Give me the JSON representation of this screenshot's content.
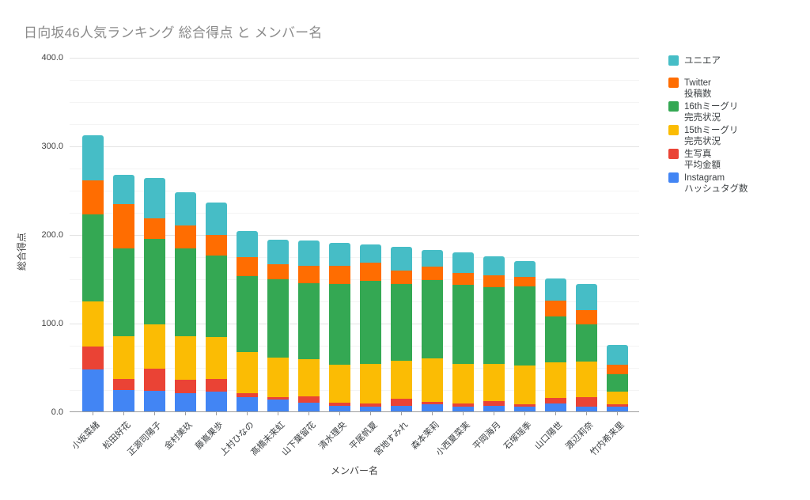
{
  "title": {
    "text": "日向坂46人気ランキング 総合得点 と メンバー名",
    "color": "#8b8b8b"
  },
  "axes": {
    "y_title": "総合得点",
    "x_title": "メンバー名"
  },
  "colors": {
    "uniair_teal": "#46BDC6",
    "twitter_orange": "#FF6D01",
    "miigli16_green": "#34A853",
    "miigli15_yellow": "#FBBC04",
    "photo_red": "#EA4335",
    "instagram_blue": "#4285F4",
    "grid_major": "#e3e3e3",
    "grid_minor": "#f4f4f4",
    "axis_line": "#9e9e9e"
  },
  "chart_data": {
    "type": "bar",
    "stacked": true,
    "orientation": "vertical",
    "title": "日向坂46人気ランキング 総合得点 と メンバー名",
    "xlabel": "メンバー名",
    "ylabel": "総合得点",
    "ylim": [
      0,
      400
    ],
    "ytick_values": [
      0,
      100,
      200,
      300,
      400
    ],
    "ytick_labels": [
      "0.0",
      "100.0",
      "200.0",
      "300.0",
      "400.0"
    ],
    "minor_gridline_step": 25,
    "grid": true,
    "legend_position": "right",
    "categories": [
      "小坂菜緒",
      "松田好花",
      "正源司陽子",
      "金村美玖",
      "藤嶌果歩",
      "上村ひなの",
      "髙橋未来虹",
      "山下葉留花",
      "清水理央",
      "平尾帆夏",
      "宮地すみれ",
      "森本茉莉",
      "小西夏菜実",
      "平岡海月",
      "石塚瑶季",
      "山口陽世",
      "渡辺莉奈",
      "竹内希来里"
    ],
    "series": [
      {
        "name": "Instagram ハッシュタグ数",
        "color": "#4285F4",
        "values": [
          47,
          24,
          23,
          21,
          22,
          16,
          13,
          10,
          6,
          5,
          6,
          8,
          5,
          6,
          5,
          9,
          5,
          5
        ]
      },
      {
        "name": "生写真 平均金額",
        "color": "#EA4335",
        "values": [
          26,
          13,
          25,
          15,
          15,
          5,
          3,
          7,
          4,
          4,
          8,
          3,
          4,
          6,
          3,
          6,
          11,
          3
        ]
      },
      {
        "name": "15thミーグリ 完売状況",
        "color": "#FBBC04",
        "values": [
          51,
          48,
          50,
          49,
          47,
          46,
          45,
          42,
          43,
          45,
          43,
          49,
          45,
          42,
          44,
          40,
          40,
          14
        ]
      },
      {
        "name": "16thミーグリ 完売状況",
        "color": "#34A853",
        "values": [
          98,
          99,
          97,
          99,
          92,
          86,
          88,
          86,
          91,
          93,
          87,
          88,
          89,
          86,
          89,
          52,
          42,
          20
        ]
      },
      {
        "name": "Twitter 投稿数",
        "color": "#FF6D01",
        "values": [
          39,
          50,
          23,
          26,
          23,
          21,
          17,
          19,
          20,
          21,
          15,
          15,
          13,
          14,
          11,
          18,
          16,
          11
        ]
      },
      {
        "name": "ユニエア",
        "color": "#46BDC6",
        "values": [
          51,
          33,
          45,
          37,
          37,
          30,
          28,
          29,
          26,
          20,
          27,
          19,
          23,
          21,
          18,
          25,
          30,
          22
        ]
      }
    ],
    "totals": [
      312,
      267,
      263,
      247,
      236,
      204,
      194,
      193,
      190,
      188,
      186,
      182,
      179,
      175,
      170,
      150,
      144,
      75
    ]
  },
  "legend": {
    "entries": [
      {
        "color": "#46BDC6",
        "lines": [
          "ユニエア"
        ]
      },
      {
        "color": "#FF6D01",
        "lines": [
          "Twitter",
          "投稿数"
        ]
      },
      {
        "color": "#34A853",
        "lines": [
          "16thミーグリ",
          "完売状況"
        ]
      },
      {
        "color": "#FBBC04",
        "lines": [
          "15thミーグリ",
          "完売状況"
        ]
      },
      {
        "color": "#EA4335",
        "lines": [
          "生写真",
          "平均金額"
        ]
      },
      {
        "color": "#4285F4",
        "lines": [
          "Instagram",
          "ハッシュタグ数"
        ]
      }
    ]
  }
}
